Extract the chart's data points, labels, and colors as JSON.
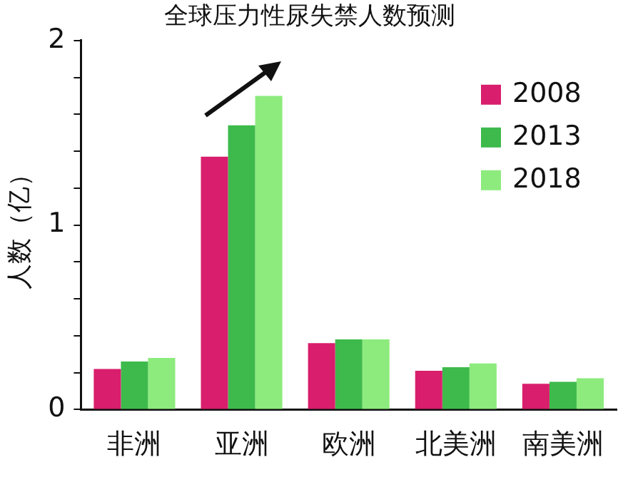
{
  "chart_data": {
    "type": "bar",
    "title": "全球压力性尿失禁人数预测",
    "ylabel": "人数（亿）",
    "categories": [
      "非洲",
      "亚洲",
      "欧洲",
      "北美洲",
      "南美洲"
    ],
    "series": [
      {
        "name": "2008",
        "color": "#d81e6c",
        "values": [
          0.22,
          1.37,
          0.36,
          0.21,
          0.14
        ]
      },
      {
        "name": "2013",
        "color": "#3dba4b",
        "values": [
          0.26,
          1.54,
          0.38,
          0.23,
          0.15
        ]
      },
      {
        "name": "2018",
        "color": "#8ceb7c",
        "values": [
          0.28,
          1.7,
          0.38,
          0.25,
          0.17
        ]
      }
    ],
    "ylim": [
      0,
      2
    ],
    "yticks": [
      0,
      {
        "value": 0.2,
        "label": null
      },
      {
        "value": 0.4,
        "label": null
      },
      {
        "value": 0.6,
        "label": null
      },
      {
        "value": 0.8,
        "label": null
      },
      1,
      {
        "value": 1.2,
        "label": null
      },
      {
        "value": 1.4,
        "label": null
      },
      {
        "value": 1.6,
        "label": null
      },
      {
        "value": 1.8,
        "label": null
      },
      2
    ],
    "grid": false,
    "legend": "top right"
  }
}
